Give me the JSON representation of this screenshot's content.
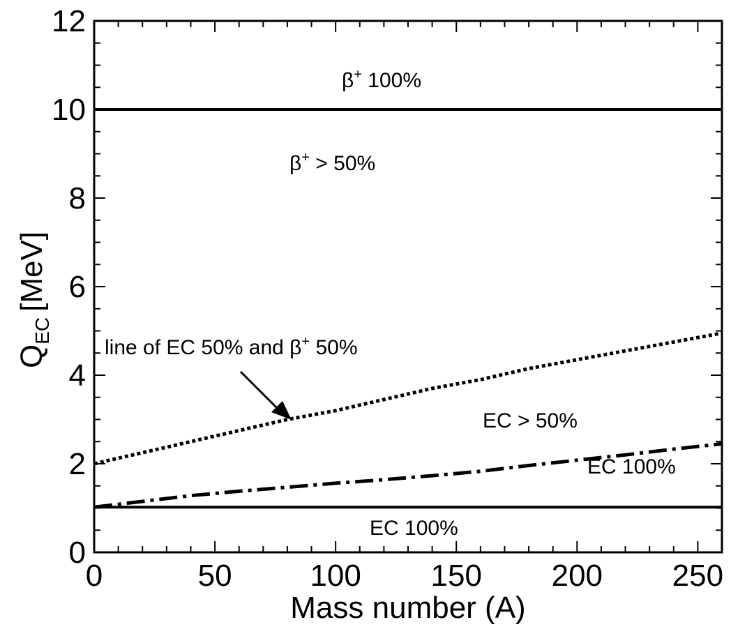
{
  "chart_data": {
    "type": "line",
    "title": "",
    "xlabel": "Mass number (A)",
    "ylabel_main": "Q",
    "ylabel_sub": "EC",
    "ylabel_unit": "[MeV]",
    "xlim": [
      0,
      260
    ],
    "ylim": [
      0,
      12
    ],
    "x_ticks": [
      0,
      50,
      100,
      150,
      200,
      250
    ],
    "y_ticks": [
      0,
      2,
      4,
      6,
      8,
      10,
      12
    ],
    "grid": false,
    "series": [
      {
        "style": "solid",
        "x": [
          0,
          260
        ],
        "y": [
          10,
          10
        ]
      },
      {
        "style": "solid",
        "x": [
          0,
          260
        ],
        "y": [
          1.02,
          1.02
        ]
      },
      {
        "style": "dotted",
        "x": [
          0,
          20,
          40,
          60,
          80,
          100,
          120,
          140,
          160,
          180,
          200,
          220,
          240,
          260
        ],
        "y": [
          2.0,
          2.25,
          2.5,
          2.75,
          3.0,
          3.2,
          3.45,
          3.7,
          3.9,
          4.15,
          4.35,
          4.55,
          4.75,
          4.95
        ]
      },
      {
        "style": "dashdot",
        "x": [
          0,
          20,
          40,
          60,
          80,
          100,
          120,
          140,
          160,
          180,
          200,
          220,
          240,
          260
        ],
        "y": [
          1.02,
          1.15,
          1.28,
          1.38,
          1.47,
          1.56,
          1.64,
          1.73,
          1.83,
          1.96,
          2.08,
          2.2,
          2.33,
          2.45
        ]
      }
    ],
    "annotations": [
      {
        "id": "b100",
        "base": "β",
        "sup": "+",
        "rest": " 100%"
      },
      {
        "id": "b50",
        "base": "β",
        "sup": "+",
        "rest": " > 50%"
      },
      {
        "id": "line50",
        "text": "line of EC 50% and β",
        "sup": "+",
        "rest": " 50%"
      },
      {
        "id": "ec50",
        "text": "EC > 50%"
      },
      {
        "id": "ec100a",
        "text": "EC 100%"
      },
      {
        "id": "ec100b",
        "text": "EC 100%"
      }
    ]
  }
}
